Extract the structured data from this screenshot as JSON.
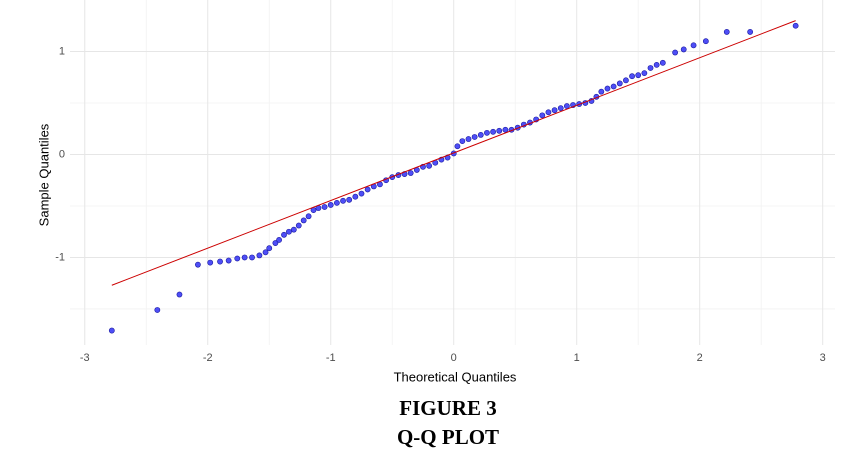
{
  "chart_data": {
    "type": "scatter",
    "x_label": "Theoretical Quantiles",
    "y_label": "Sample Quantiles",
    "caption": [
      "FIGURE 3",
      "Q-Q PLOT"
    ],
    "color": "#3b3bf5",
    "x": [
      -2.78,
      -2.41,
      -2.23,
      -2.08,
      -1.98,
      -1.9,
      -1.83,
      -1.76,
      -1.7,
      -1.64,
      -1.58,
      -1.53,
      -1.5,
      -1.45,
      -1.42,
      -1.38,
      -1.34,
      -1.3,
      -1.26,
      -1.22,
      -1.18,
      -1.14,
      -1.1,
      -1.05,
      -1.0,
      -0.95,
      -0.9,
      -0.85,
      -0.8,
      -0.75,
      -0.7,
      -0.65,
      -0.6,
      -0.55,
      -0.5,
      -0.45,
      -0.4,
      -0.35,
      -0.3,
      -0.25,
      -0.2,
      -0.15,
      -0.1,
      -0.05,
      0.0,
      0.03,
      0.07,
      0.12,
      0.17,
      0.22,
      0.27,
      0.32,
      0.37,
      0.42,
      0.47,
      0.52,
      0.57,
      0.62,
      0.67,
      0.72,
      0.77,
      0.82,
      0.87,
      0.92,
      0.97,
      1.02,
      1.07,
      1.12,
      1.16,
      1.2,
      1.25,
      1.3,
      1.35,
      1.4,
      1.45,
      1.5,
      1.55,
      1.6,
      1.65,
      1.7,
      1.8,
      1.87,
      1.95,
      2.05,
      2.22,
      2.41,
      2.78
    ],
    "values": [
      -1.71,
      -1.51,
      -1.36,
      -1.07,
      -1.05,
      -1.04,
      -1.03,
      -1.01,
      -1.0,
      -1.0,
      -0.98,
      -0.95,
      -0.91,
      -0.86,
      -0.83,
      -0.78,
      -0.75,
      -0.73,
      -0.69,
      -0.64,
      -0.6,
      -0.54,
      -0.52,
      -0.51,
      -0.49,
      -0.47,
      -0.45,
      -0.44,
      -0.41,
      -0.38,
      -0.34,
      -0.31,
      -0.29,
      -0.25,
      -0.22,
      -0.2,
      -0.19,
      -0.18,
      -0.15,
      -0.12,
      -0.11,
      -0.08,
      -0.05,
      -0.03,
      0.01,
      0.08,
      0.13,
      0.15,
      0.17,
      0.19,
      0.21,
      0.22,
      0.23,
      0.24,
      0.24,
      0.26,
      0.29,
      0.31,
      0.34,
      0.38,
      0.41,
      0.43,
      0.45,
      0.47,
      0.48,
      0.49,
      0.5,
      0.52,
      0.56,
      0.61,
      0.64,
      0.66,
      0.69,
      0.72,
      0.76,
      0.77,
      0.79,
      0.84,
      0.87,
      0.89,
      0.99,
      1.02,
      1.06,
      1.1,
      1.19,
      1.19,
      1.25
    ],
    "reference_line": {
      "x": [
        -2.78,
        2.78
      ],
      "y": [
        -1.27,
        1.3
      ],
      "color": "#cc0000"
    },
    "xlim": [
      -3.12,
      3.1
    ],
    "ylim": [
      -1.85,
      1.5
    ],
    "xticks": [
      -3,
      -2,
      -1,
      0,
      1,
      2,
      3
    ],
    "yticks": [
      -1,
      0,
      1
    ],
    "xminor": [
      -2.5,
      -1.5,
      -0.5,
      0.5,
      1.5,
      2.5
    ],
    "yminor": [
      -1.5,
      -0.5,
      0.5
    ],
    "grid": true
  }
}
